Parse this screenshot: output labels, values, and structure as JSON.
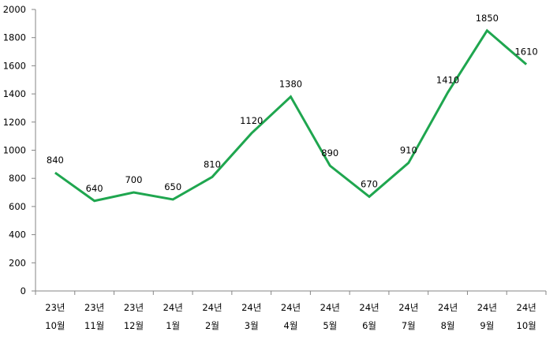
{
  "chart_data": {
    "type": "line",
    "title": "",
    "xlabel": "",
    "ylabel": "",
    "categories": [
      [
        "23년",
        "10월"
      ],
      [
        "23년",
        "11월"
      ],
      [
        "23년",
        "12월"
      ],
      [
        "24년",
        "1월"
      ],
      [
        "24년",
        "2월"
      ],
      [
        "24년",
        "3월"
      ],
      [
        "24년",
        "4월"
      ],
      [
        "24년",
        "5월"
      ],
      [
        "24년",
        "6월"
      ],
      [
        "24년",
        "7월"
      ],
      [
        "24년",
        "8월"
      ],
      [
        "24년",
        "9월"
      ],
      [
        "24년",
        "10월"
      ]
    ],
    "series": [
      {
        "name": "",
        "color": "#1fa64f",
        "values": [
          840,
          640,
          700,
          650,
          810,
          1120,
          1380,
          890,
          670,
          910,
          1410,
          1850,
          1610
        ]
      }
    ],
    "ylim": [
      0,
      2000
    ],
    "yticks": [
      0,
      200,
      400,
      600,
      800,
      1000,
      1200,
      1400,
      1600,
      1800,
      2000
    ],
    "grid": false,
    "legend": "none",
    "data_labels": true
  }
}
